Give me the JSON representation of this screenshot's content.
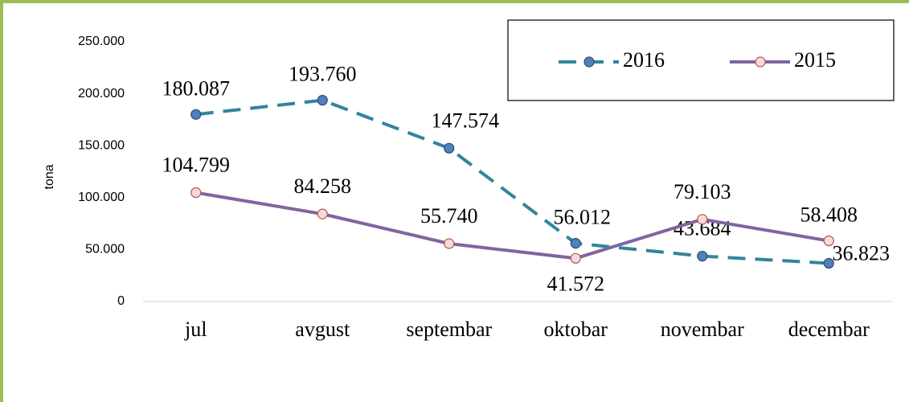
{
  "chart_data": {
    "type": "line",
    "y_label": "tona",
    "categories": [
      "jul",
      "avgust",
      "septembar",
      "oktobar",
      "novembar",
      "decembar"
    ],
    "series": [
      {
        "name": "2016",
        "color": "#31859c",
        "marker_fill": "#4f81bd",
        "marker_stroke": "#2c4d75",
        "line_style": "dashed",
        "values": [
          180087,
          193760,
          147574,
          56012,
          43684,
          36823
        ],
        "value_labels": [
          "180.087",
          "193.760",
          "147.574",
          "56.012",
          "43.684",
          "36.823"
        ]
      },
      {
        "name": "2015",
        "color": "#8064a2",
        "marker_fill": "#f2dcdb",
        "marker_stroke": "#c0504d",
        "line_style": "solid",
        "values": [
          104799,
          84258,
          55740,
          41572,
          79103,
          58408
        ],
        "value_labels": [
          "104.799",
          "84.258",
          "55.740",
          "41.572",
          "79.103",
          "58.408"
        ]
      }
    ],
    "ylim": [
      0,
      250000
    ],
    "yticks": [
      0,
      {
        "value": 50000,
        "label": "50.000"
      },
      {
        "value": 100000,
        "label": "100.000"
      },
      {
        "value": 150000,
        "label": "150.000"
      },
      {
        "value": 200000,
        "label": "200.000"
      },
      {
        "value": 250000,
        "label": "250.000"
      }
    ],
    "grid": false,
    "legend": "top-right"
  }
}
